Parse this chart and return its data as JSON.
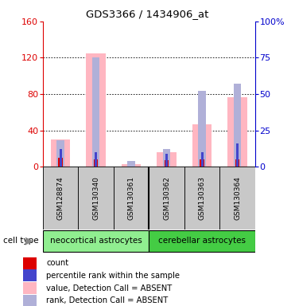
{
  "title": "GDS3366 / 1434906_at",
  "samples": [
    "GSM128874",
    "GSM130340",
    "GSM130361",
    "GSM130362",
    "GSM130363",
    "GSM130364"
  ],
  "group1_label": "neocortical astrocytes",
  "group2_label": "cerebellar astrocytes",
  "group1_count": 3,
  "group2_count": 3,
  "pink_bars": [
    30,
    125,
    3,
    16,
    47,
    77
  ],
  "blue_bars_pct": [
    18,
    75,
    4,
    12,
    52,
    57
  ],
  "red_bars": [
    10,
    8,
    0,
    7,
    8,
    8
  ],
  "dark_blue_bars_pct": [
    12,
    10,
    0,
    9,
    10,
    16
  ],
  "bar_width": 0.55,
  "sample_bg": "#c8c8c8",
  "pink_color": "#ffb6c1",
  "blue_color": "#b0b0d8",
  "red_color": "#dd0000",
  "dark_blue_color": "#4444cc",
  "group1_color": "#90ee90",
  "group2_color": "#44cc44",
  "left_axis_color": "#dd0000",
  "right_axis_color": "#0000cc",
  "left_ylim": [
    0,
    160
  ],
  "left_yticks": [
    0,
    40,
    80,
    120,
    160
  ],
  "right_ylim": [
    0,
    100
  ],
  "right_yticks": [
    0,
    25,
    50,
    75,
    100
  ],
  "right_yticklabels": [
    "0",
    "25",
    "50",
    "75",
    "100%"
  ],
  "grid_lines": [
    40,
    80,
    120
  ],
  "legend_items": [
    {
      "color": "#dd0000",
      "label": "count"
    },
    {
      "color": "#4444cc",
      "label": "percentile rank within the sample"
    },
    {
      "color": "#ffb6c1",
      "label": "value, Detection Call = ABSENT"
    },
    {
      "color": "#b0b0d8",
      "label": "rank, Detection Call = ABSENT"
    }
  ]
}
